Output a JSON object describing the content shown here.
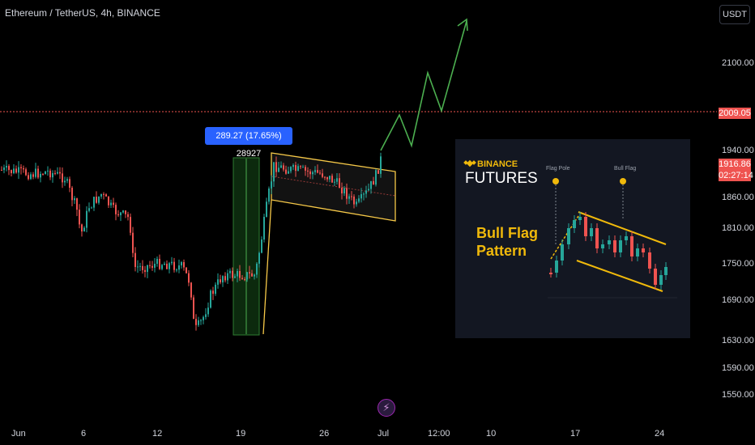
{
  "header": {
    "title": "Ethereum / TetherUS, 4h, BINANCE",
    "currency_button": "USDT"
  },
  "y_axis": {
    "ticks": [
      "2100.00",
      "2009.05",
      "1940.00",
      "1860.00",
      "1810.00",
      "1750.00",
      "1690.00",
      "1630.00",
      "1590.00",
      "1550.00"
    ]
  },
  "x_axis": {
    "ticks": [
      "Jun",
      "6",
      "12",
      "19",
      "26",
      "Jul",
      "12:00",
      "10",
      "17",
      "24"
    ]
  },
  "price_tags": {
    "red_line": "2009.05",
    "last_price": "1916.86",
    "countdown": "02:27:14"
  },
  "measure": {
    "label": "289.27 (17.65%) 28927"
  },
  "inset": {
    "brand": "BINANCE",
    "product": "FUTURES",
    "title_line1": "Bull Flag",
    "title_line2": "Pattern",
    "label_pole": "Flag Pole",
    "label_flag": "Bull Flag"
  },
  "colors": {
    "up": "#26a69a",
    "down": "#ef5350",
    "flag": "#f7c948",
    "projection": "#4caf50",
    "accent": "#2962ff"
  },
  "icons": {
    "bolt": "lightning-bolt-icon"
  }
}
